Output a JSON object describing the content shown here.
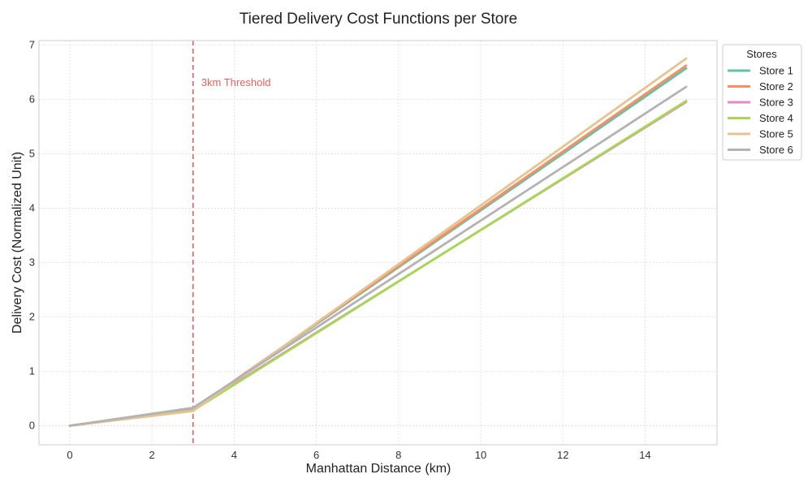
{
  "chart_data": {
    "type": "line",
    "title": "Tiered Delivery Cost Functions per Store",
    "xlabel": "Manhattan Distance (km)",
    "ylabel": "Delivery Cost (Normalized Unit)",
    "xlim": [
      -0.75,
      15.75
    ],
    "ylim": [
      -0.35,
      7.08
    ],
    "xticks": [
      0,
      2,
      4,
      6,
      8,
      10,
      12,
      14
    ],
    "yticks": [
      0,
      1,
      2,
      3,
      4,
      5,
      6,
      7
    ],
    "grid": true,
    "legend": {
      "title": "Stores",
      "placement": "outside top-right"
    },
    "annotation": {
      "x": 3,
      "label": "3km Threshold",
      "color": "#e8615f"
    },
    "series": [
      {
        "name": "Store 1",
        "color": "#66c2a5",
        "x": [
          0,
          3,
          15
        ],
        "y": [
          0,
          0.3,
          6.57
        ]
      },
      {
        "name": "Store 2",
        "color": "#fc8d62",
        "x": [
          0,
          3,
          15
        ],
        "y": [
          0,
          0.3,
          6.62
        ]
      },
      {
        "name": "Store 3",
        "color": "#e78ac3",
        "x": [
          0,
          3,
          15
        ],
        "y": [
          0,
          0.3,
          5.95
        ]
      },
      {
        "name": "Store 4",
        "color": "#a6d854",
        "x": [
          0,
          3,
          15
        ],
        "y": [
          0,
          0.28,
          5.97
        ]
      },
      {
        "name": "Store 5",
        "color": "#e5c494",
        "x": [
          0,
          3,
          15
        ],
        "y": [
          0,
          0.27,
          6.75
        ]
      },
      {
        "name": "Store 6",
        "color": "#b3b3b3",
        "x": [
          0,
          3,
          15
        ],
        "y": [
          0,
          0.33,
          6.23
        ]
      }
    ]
  }
}
